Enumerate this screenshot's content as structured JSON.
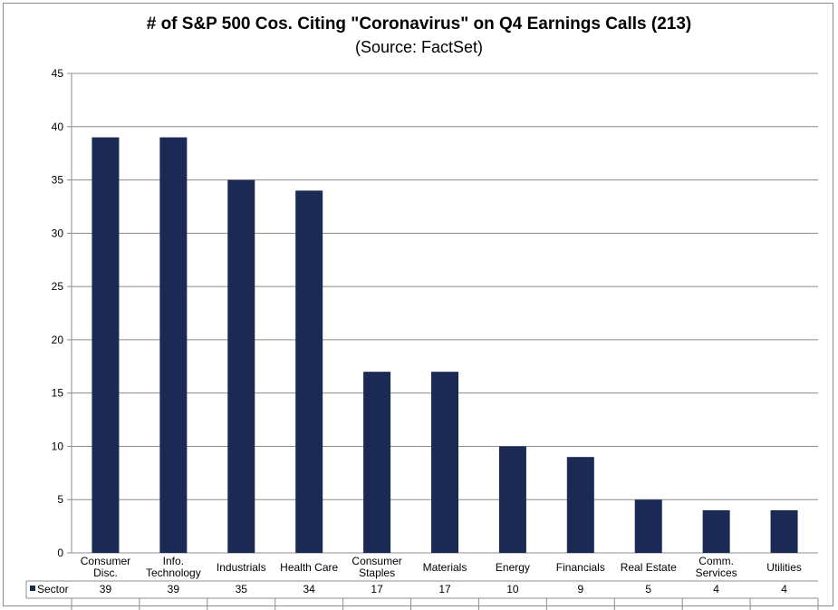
{
  "chart_data": {
    "type": "bar",
    "title": "# of S&P 500 Cos. Citing \"Coronavirus\" on Q4 Earnings Calls (213)",
    "subtitle": "(Source: FactSet)",
    "categories": [
      [
        "Consumer",
        "Disc."
      ],
      [
        "Info.",
        "Technology"
      ],
      [
        "Industrials"
      ],
      [
        "Health Care"
      ],
      [
        "Consumer",
        "Staples"
      ],
      [
        "Materials"
      ],
      [
        "Energy"
      ],
      [
        "Financials"
      ],
      [
        "Real Estate"
      ],
      [
        "Comm.",
        "Services"
      ],
      [
        "Utilities"
      ]
    ],
    "series": [
      {
        "name": "Sector",
        "values": [
          39,
          39,
          35,
          34,
          17,
          17,
          10,
          9,
          5,
          4,
          4
        ]
      }
    ],
    "ylim": [
      0,
      45
    ],
    "yticks": [
      0,
      5,
      10,
      15,
      20,
      25,
      30,
      35,
      40,
      45
    ],
    "grid": true,
    "legend": "data-table-left",
    "bar_color": "#1b2a55"
  }
}
